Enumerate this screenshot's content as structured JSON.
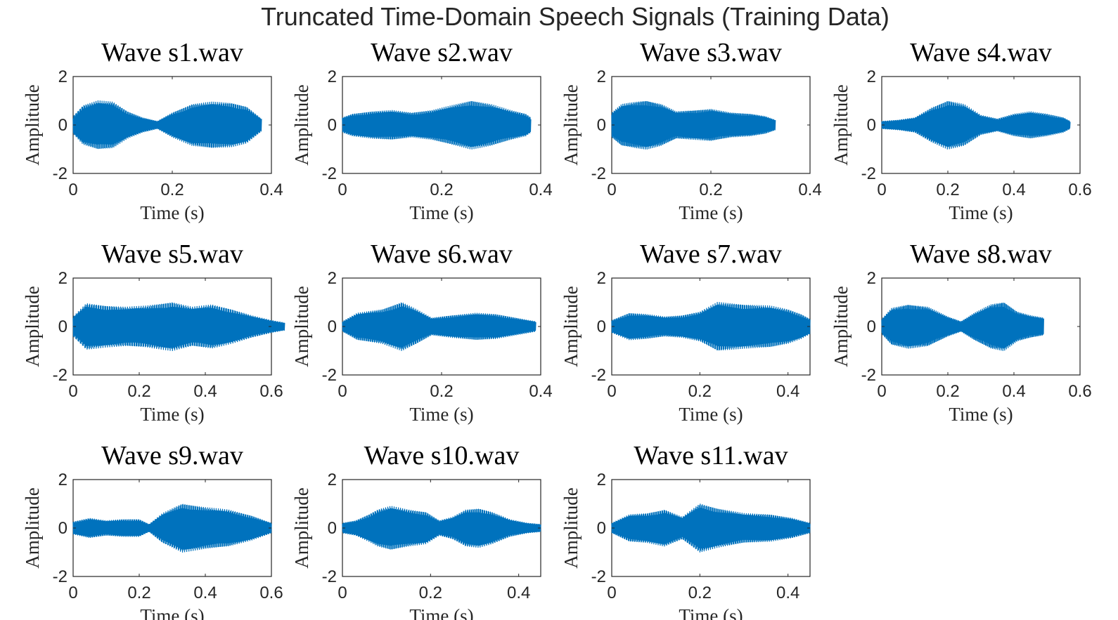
{
  "figure": {
    "title": "Truncated Time-Domain Speech Signals (Training Data)"
  },
  "colors": {
    "waveform": "#0072BD",
    "axis": "#262626",
    "background": "#ffffff"
  },
  "chart_data": [
    {
      "type": "line",
      "title": "Wave s1.wav",
      "xlabel": "Time (s)",
      "ylabel": "Amplitude",
      "xlim": [
        0,
        0.4
      ],
      "ylim": [
        -2,
        2
      ],
      "xticks": [
        "0",
        "0.2",
        "0.4"
      ],
      "yticks": [
        "-2",
        "0",
        "2"
      ],
      "duration": 0.38,
      "envelope": [
        [
          0,
          0.35
        ],
        [
          0.02,
          0.8
        ],
        [
          0.05,
          1.0
        ],
        [
          0.08,
          0.95
        ],
        [
          0.11,
          0.55
        ],
        [
          0.14,
          0.3
        ],
        [
          0.17,
          0.15
        ],
        [
          0.2,
          0.5
        ],
        [
          0.24,
          0.85
        ],
        [
          0.28,
          0.95
        ],
        [
          0.32,
          0.9
        ],
        [
          0.35,
          0.75
        ],
        [
          0.38,
          0.25
        ]
      ]
    },
    {
      "type": "line",
      "title": "Wave s2.wav",
      "xlabel": "Time (s)",
      "ylabel": "Amplitude",
      "xlim": [
        0,
        0.4
      ],
      "ylim": [
        -2,
        2
      ],
      "xticks": [
        "0",
        "0.2",
        "0.4"
      ],
      "yticks": [
        "-2",
        "0",
        "2"
      ],
      "duration": 0.38,
      "envelope": [
        [
          0,
          0.3
        ],
        [
          0.02,
          0.45
        ],
        [
          0.06,
          0.55
        ],
        [
          0.1,
          0.6
        ],
        [
          0.14,
          0.5
        ],
        [
          0.18,
          0.6
        ],
        [
          0.22,
          0.8
        ],
        [
          0.26,
          1.0
        ],
        [
          0.3,
          0.85
        ],
        [
          0.34,
          0.6
        ],
        [
          0.37,
          0.45
        ],
        [
          0.38,
          0.3
        ]
      ]
    },
    {
      "type": "line",
      "title": "Wave s3.wav",
      "xlabel": "Time (s)",
      "ylabel": "Amplitude",
      "xlim": [
        0,
        0.4
      ],
      "ylim": [
        -2,
        2
      ],
      "xticks": [
        "0",
        "0.2",
        "0.4"
      ],
      "yticks": [
        "-2",
        "0",
        "2"
      ],
      "duration": 0.33,
      "envelope": [
        [
          0,
          0.5
        ],
        [
          0.02,
          0.85
        ],
        [
          0.05,
          0.95
        ],
        [
          0.07,
          1.0
        ],
        [
          0.1,
          0.85
        ],
        [
          0.13,
          0.55
        ],
        [
          0.17,
          0.6
        ],
        [
          0.2,
          0.65
        ],
        [
          0.24,
          0.5
        ],
        [
          0.28,
          0.45
        ],
        [
          0.31,
          0.35
        ],
        [
          0.33,
          0.2
        ]
      ]
    },
    {
      "type": "line",
      "title": "Wave s4.wav",
      "xlabel": "Time (s)",
      "ylabel": "Amplitude",
      "xlim": [
        0,
        0.6
      ],
      "ylim": [
        -2,
        2
      ],
      "xticks": [
        "0",
        "0.2",
        "0.4",
        "0.6"
      ],
      "yticks": [
        "-2",
        "0",
        "2"
      ],
      "duration": 0.57,
      "envelope": [
        [
          0,
          0.15
        ],
        [
          0.05,
          0.2
        ],
        [
          0.1,
          0.3
        ],
        [
          0.15,
          0.7
        ],
        [
          0.2,
          1.0
        ],
        [
          0.25,
          0.85
        ],
        [
          0.3,
          0.4
        ],
        [
          0.35,
          0.25
        ],
        [
          0.4,
          0.45
        ],
        [
          0.45,
          0.55
        ],
        [
          0.5,
          0.45
        ],
        [
          0.55,
          0.3
        ],
        [
          0.57,
          0.15
        ]
      ]
    },
    {
      "type": "line",
      "title": "Wave s5.wav",
      "xlabel": "Time (s)",
      "ylabel": "Amplitude",
      "xlim": [
        0,
        0.6
      ],
      "ylim": [
        -2,
        2
      ],
      "xticks": [
        "0",
        "0.2",
        "0.4",
        "0.6"
      ],
      "yticks": [
        "-2",
        "0",
        "2"
      ],
      "duration": 0.64,
      "envelope": [
        [
          0,
          0.4
        ],
        [
          0.04,
          0.95
        ],
        [
          0.1,
          0.85
        ],
        [
          0.16,
          0.8
        ],
        [
          0.22,
          0.85
        ],
        [
          0.3,
          1.0
        ],
        [
          0.36,
          0.8
        ],
        [
          0.42,
          0.9
        ],
        [
          0.48,
          0.7
        ],
        [
          0.54,
          0.45
        ],
        [
          0.6,
          0.25
        ],
        [
          0.64,
          0.15
        ]
      ]
    },
    {
      "type": "line",
      "title": "Wave s6.wav",
      "xlabel": "Time (s)",
      "ylabel": "Amplitude",
      "xlim": [
        0,
        0.4
      ],
      "ylim": [
        -2,
        2
      ],
      "xticks": [
        "0",
        "0.2",
        "0.4"
      ],
      "yticks": [
        "-2",
        "0",
        "2"
      ],
      "duration": 0.39,
      "envelope": [
        [
          0,
          0.2
        ],
        [
          0.03,
          0.55
        ],
        [
          0.08,
          0.7
        ],
        [
          0.12,
          1.0
        ],
        [
          0.15,
          0.7
        ],
        [
          0.18,
          0.35
        ],
        [
          0.22,
          0.45
        ],
        [
          0.27,
          0.55
        ],
        [
          0.31,
          0.5
        ],
        [
          0.35,
          0.35
        ],
        [
          0.39,
          0.2
        ]
      ]
    },
    {
      "type": "line",
      "title": "Wave s7.wav",
      "xlabel": "Time (s)",
      "ylabel": "Amplitude",
      "xlim": [
        0,
        0.45
      ],
      "ylim": [
        -2,
        2
      ],
      "xticks": [
        "0",
        "0.2",
        "0.4"
      ],
      "yticks": [
        "-2",
        "0",
        "2"
      ],
      "duration": 0.45,
      "envelope": [
        [
          0,
          0.25
        ],
        [
          0.04,
          0.55
        ],
        [
          0.08,
          0.5
        ],
        [
          0.12,
          0.4
        ],
        [
          0.16,
          0.45
        ],
        [
          0.2,
          0.6
        ],
        [
          0.24,
          1.0
        ],
        [
          0.3,
          0.9
        ],
        [
          0.36,
          0.85
        ],
        [
          0.4,
          0.7
        ],
        [
          0.43,
          0.5
        ],
        [
          0.45,
          0.3
        ]
      ]
    },
    {
      "type": "line",
      "title": "Wave s8.wav",
      "xlabel": "Time (s)",
      "ylabel": "Amplitude",
      "xlim": [
        0,
        0.6
      ],
      "ylim": [
        -2,
        2
      ],
      "xticks": [
        "0",
        "0.2",
        "0.4",
        "0.6"
      ],
      "yticks": [
        "-2",
        "0",
        "2"
      ],
      "duration": 0.49,
      "envelope": [
        [
          0,
          0.3
        ],
        [
          0.03,
          0.75
        ],
        [
          0.08,
          0.9
        ],
        [
          0.14,
          0.8
        ],
        [
          0.2,
          0.4
        ],
        [
          0.24,
          0.2
        ],
        [
          0.28,
          0.55
        ],
        [
          0.33,
          0.9
        ],
        [
          0.37,
          1.0
        ],
        [
          0.41,
          0.6
        ],
        [
          0.45,
          0.45
        ],
        [
          0.49,
          0.35
        ]
      ]
    },
    {
      "type": "line",
      "title": "Wave s9.wav",
      "xlabel": "Time (s)",
      "ylabel": "Amplitude",
      "xlim": [
        0,
        0.6
      ],
      "ylim": [
        -2,
        2
      ],
      "xticks": [
        "0",
        "0.2",
        "0.4",
        "0.6"
      ],
      "yticks": [
        "-2",
        "0",
        "2"
      ],
      "duration": 0.6,
      "envelope": [
        [
          0,
          0.25
        ],
        [
          0.05,
          0.4
        ],
        [
          0.1,
          0.3
        ],
        [
          0.15,
          0.35
        ],
        [
          0.2,
          0.35
        ],
        [
          0.23,
          0.15
        ],
        [
          0.27,
          0.6
        ],
        [
          0.33,
          1.0
        ],
        [
          0.4,
          0.85
        ],
        [
          0.47,
          0.75
        ],
        [
          0.54,
          0.5
        ],
        [
          0.6,
          0.2
        ]
      ]
    },
    {
      "type": "line",
      "title": "Wave s10.wav",
      "xlabel": "Time (s)",
      "ylabel": "Amplitude",
      "xlim": [
        0,
        0.45
      ],
      "ylim": [
        -2,
        2
      ],
      "xticks": [
        "0",
        "0.2",
        "0.4"
      ],
      "yticks": [
        "-2",
        "0",
        "2"
      ],
      "duration": 0.45,
      "envelope": [
        [
          0,
          0.2
        ],
        [
          0.03,
          0.3
        ],
        [
          0.06,
          0.55
        ],
        [
          0.08,
          0.75
        ],
        [
          0.11,
          0.9
        ],
        [
          0.15,
          0.75
        ],
        [
          0.19,
          0.65
        ],
        [
          0.22,
          0.3
        ],
        [
          0.25,
          0.45
        ],
        [
          0.28,
          0.75
        ],
        [
          0.31,
          0.8
        ],
        [
          0.34,
          0.65
        ],
        [
          0.38,
          0.35
        ],
        [
          0.42,
          0.2
        ],
        [
          0.45,
          0.15
        ]
      ]
    },
    {
      "type": "line",
      "title": "Wave s11.wav",
      "xlabel": "Time (s)",
      "ylabel": "Amplitude",
      "xlim": [
        0,
        0.45
      ],
      "ylim": [
        -2,
        2
      ],
      "xticks": [
        "0",
        "0.2",
        "0.4"
      ],
      "yticks": [
        "-2",
        "0",
        "2"
      ],
      "duration": 0.45,
      "envelope": [
        [
          0,
          0.2
        ],
        [
          0.04,
          0.55
        ],
        [
          0.08,
          0.6
        ],
        [
          0.12,
          0.75
        ],
        [
          0.16,
          0.45
        ],
        [
          0.2,
          1.0
        ],
        [
          0.24,
          0.8
        ],
        [
          0.3,
          0.6
        ],
        [
          0.36,
          0.55
        ],
        [
          0.41,
          0.4
        ],
        [
          0.45,
          0.2
        ]
      ]
    }
  ]
}
